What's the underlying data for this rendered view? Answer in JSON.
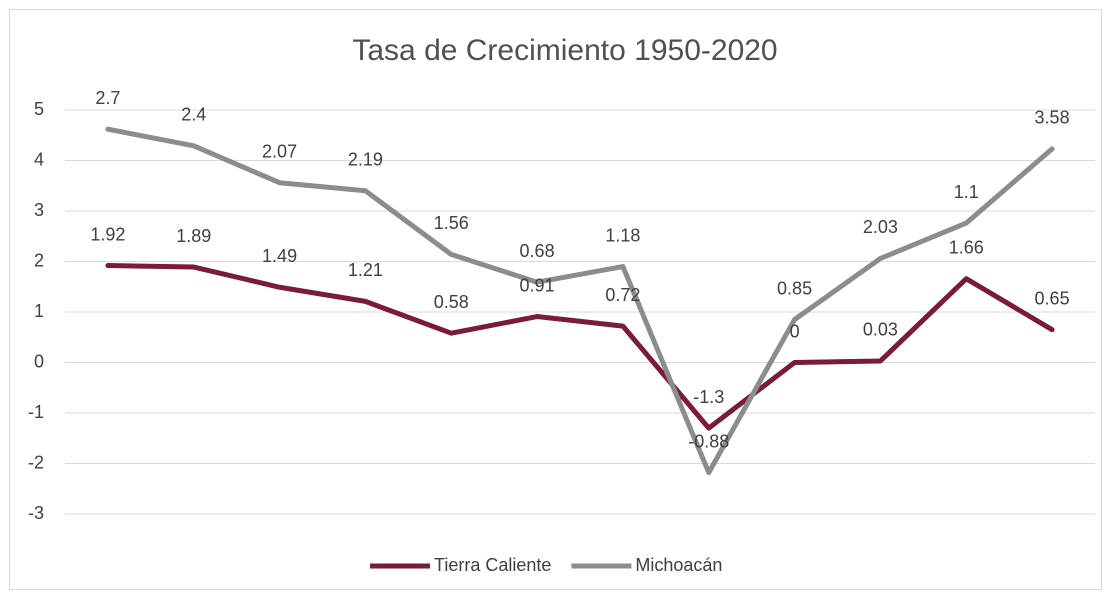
{
  "chart_data": {
    "type": "line",
    "stacked": true,
    "title": "Tasa de Crecimiento 1950-2020",
    "categories": [
      null,
      null,
      null,
      null,
      null,
      null,
      null,
      null,
      null,
      null,
      null,
      null
    ],
    "series": [
      {
        "name": "Tierra Caliente",
        "color": "#7b1c36",
        "values": [
          1.92,
          1.89,
          1.49,
          1.21,
          0.58,
          0.91,
          0.72,
          -1.3,
          0,
          0.03,
          1.66,
          0.65
        ]
      },
      {
        "name": "Michoacán",
        "color": "#8c8c8c",
        "values": [
          2.7,
          2.4,
          2.07,
          2.19,
          1.56,
          0.68,
          1.18,
          -0.88,
          0.85,
          2.03,
          1.1,
          3.58
        ]
      }
    ],
    "ylim": [
      -3,
      5
    ],
    "yticks": [
      -3,
      -2,
      -1,
      0,
      1,
      2,
      3,
      4,
      5
    ],
    "grid": true,
    "legend": "bottom"
  }
}
